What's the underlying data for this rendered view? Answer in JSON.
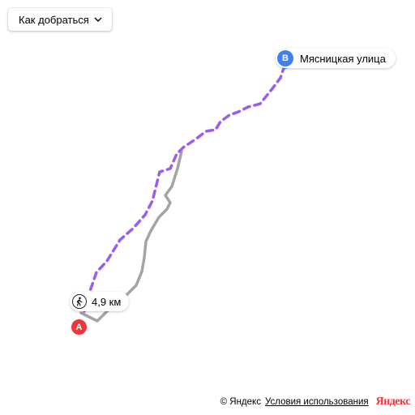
{
  "controls": {
    "route_button_label": "Как добраться"
  },
  "markers": {
    "start": {
      "letter": "A"
    },
    "end": {
      "letter": "B",
      "label": "Мясницкая улица"
    }
  },
  "route": {
    "distance": "4,9 км",
    "mode_icon": "pedestrian-icon"
  },
  "footer": {
    "copyright": "© Яндекс",
    "terms": "Условия использования",
    "logo": "Яндекс"
  },
  "colors": {
    "primary_route": "#9b5cf0",
    "alt_route": "#a4a4a4",
    "start_marker": "#f2333a",
    "end_marker": "#3f7ff0",
    "logo": "#f2333a"
  }
}
